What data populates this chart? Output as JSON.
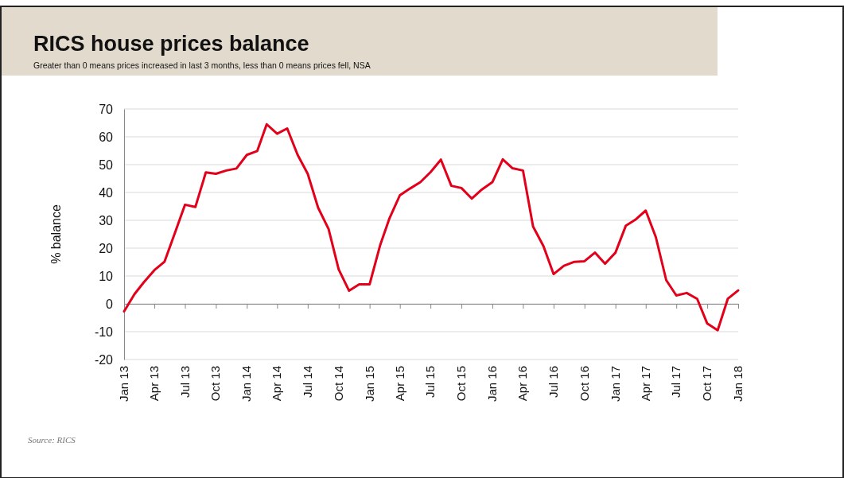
{
  "chart_data": {
    "type": "line",
    "title": "RICS house prices balance",
    "subtitle": "Greater than 0 means prices increased in last 3 months, less than 0 means prices fell, NSA",
    "ylabel": "% balance",
    "annotations": [
      "Source: RICS"
    ],
    "x": [
      "2013-01",
      "2013-02",
      "2013-03",
      "2013-04",
      "2013-05",
      "2013-06",
      "2013-07",
      "2013-08",
      "2013-09",
      "2013-10",
      "2013-11",
      "2013-12",
      "2014-01",
      "2014-02",
      "2014-03",
      "2014-04",
      "2014-05",
      "2014-06",
      "2014-07",
      "2014-08",
      "2014-09",
      "2014-10",
      "2014-11",
      "2014-12",
      "2015-01",
      "2015-02",
      "2015-03",
      "2015-04",
      "2015-05",
      "2015-06",
      "2015-07",
      "2015-08",
      "2015-09",
      "2015-10",
      "2015-11",
      "2015-12",
      "2016-01",
      "2016-02",
      "2016-03",
      "2016-04",
      "2016-05",
      "2016-06",
      "2016-07",
      "2016-08",
      "2016-09",
      "2016-10",
      "2016-11",
      "2016-12",
      "2017-01",
      "2017-02",
      "2017-03",
      "2017-04",
      "2017-05",
      "2017-06",
      "2017-07",
      "2017-08",
      "2017-09",
      "2017-10",
      "2017-11",
      "2017-12",
      "2018-01"
    ],
    "series": [
      {
        "color": "#e2001a",
        "values": [
          -2.7,
          3.5,
          7.8,
          12.1,
          15.1,
          25.4,
          35.6,
          34.8,
          47.2,
          46.7,
          47.9,
          48.6,
          53.5,
          54.9,
          64.5,
          61.1,
          63.0,
          53.5,
          46.7,
          34.5,
          26.9,
          12.4,
          4.7,
          7.0,
          7.0,
          20.9,
          30.7,
          39.0,
          41.4,
          43.7,
          47.3,
          51.8,
          42.4,
          41.6,
          37.8,
          41.1,
          43.7,
          51.9,
          48.7,
          47.9,
          27.8,
          20.7,
          10.7,
          13.7,
          15.1,
          15.3,
          18.4,
          14.4,
          18.4,
          28.1,
          30.2,
          33.5,
          24.0,
          8.5,
          3.0,
          3.9,
          1.8,
          -7.1,
          -9.5,
          1.8,
          4.8
        ]
      }
    ],
    "xlim": [
      "2013-01",
      "2018-01"
    ],
    "xticks": [
      {
        "value": "2013-01",
        "label": "Jan 13"
      },
      {
        "value": "2013-04",
        "label": "Apr 13"
      },
      {
        "value": "2013-07",
        "label": "Jul 13"
      },
      {
        "value": "2013-10",
        "label": "Oct 13"
      },
      {
        "value": "2014-01",
        "label": "Jan 14"
      },
      {
        "value": "2014-04",
        "label": "Apr 14"
      },
      {
        "value": "2014-07",
        "label": "Jul 14"
      },
      {
        "value": "2014-10",
        "label": "Oct 14"
      },
      {
        "value": "2015-01",
        "label": "Jan 15"
      },
      {
        "value": "2015-04",
        "label": "Apr 15"
      },
      {
        "value": "2015-07",
        "label": "Jul 15"
      },
      {
        "value": "2015-10",
        "label": "Oct 15"
      },
      {
        "value": "2016-01",
        "label": "Jan 16"
      },
      {
        "value": "2016-04",
        "label": "Apr 16"
      },
      {
        "value": "2016-07",
        "label": "Jul 16"
      },
      {
        "value": "2016-10",
        "label": "Oct 16"
      },
      {
        "value": "2017-01",
        "label": "Jan 17"
      },
      {
        "value": "2017-04",
        "label": "Apr 17"
      },
      {
        "value": "2017-07",
        "label": "Jul 17"
      },
      {
        "value": "2017-10",
        "label": "Oct 17"
      },
      {
        "value": "2018-01",
        "label": "Jan 18"
      }
    ],
    "ylim": [
      -20,
      70
    ],
    "yticks": [
      -20,
      -10,
      0,
      10,
      20,
      30,
      40,
      50,
      60,
      70
    ],
    "grid": "y",
    "marker": "none",
    "line_style": "solid"
  }
}
